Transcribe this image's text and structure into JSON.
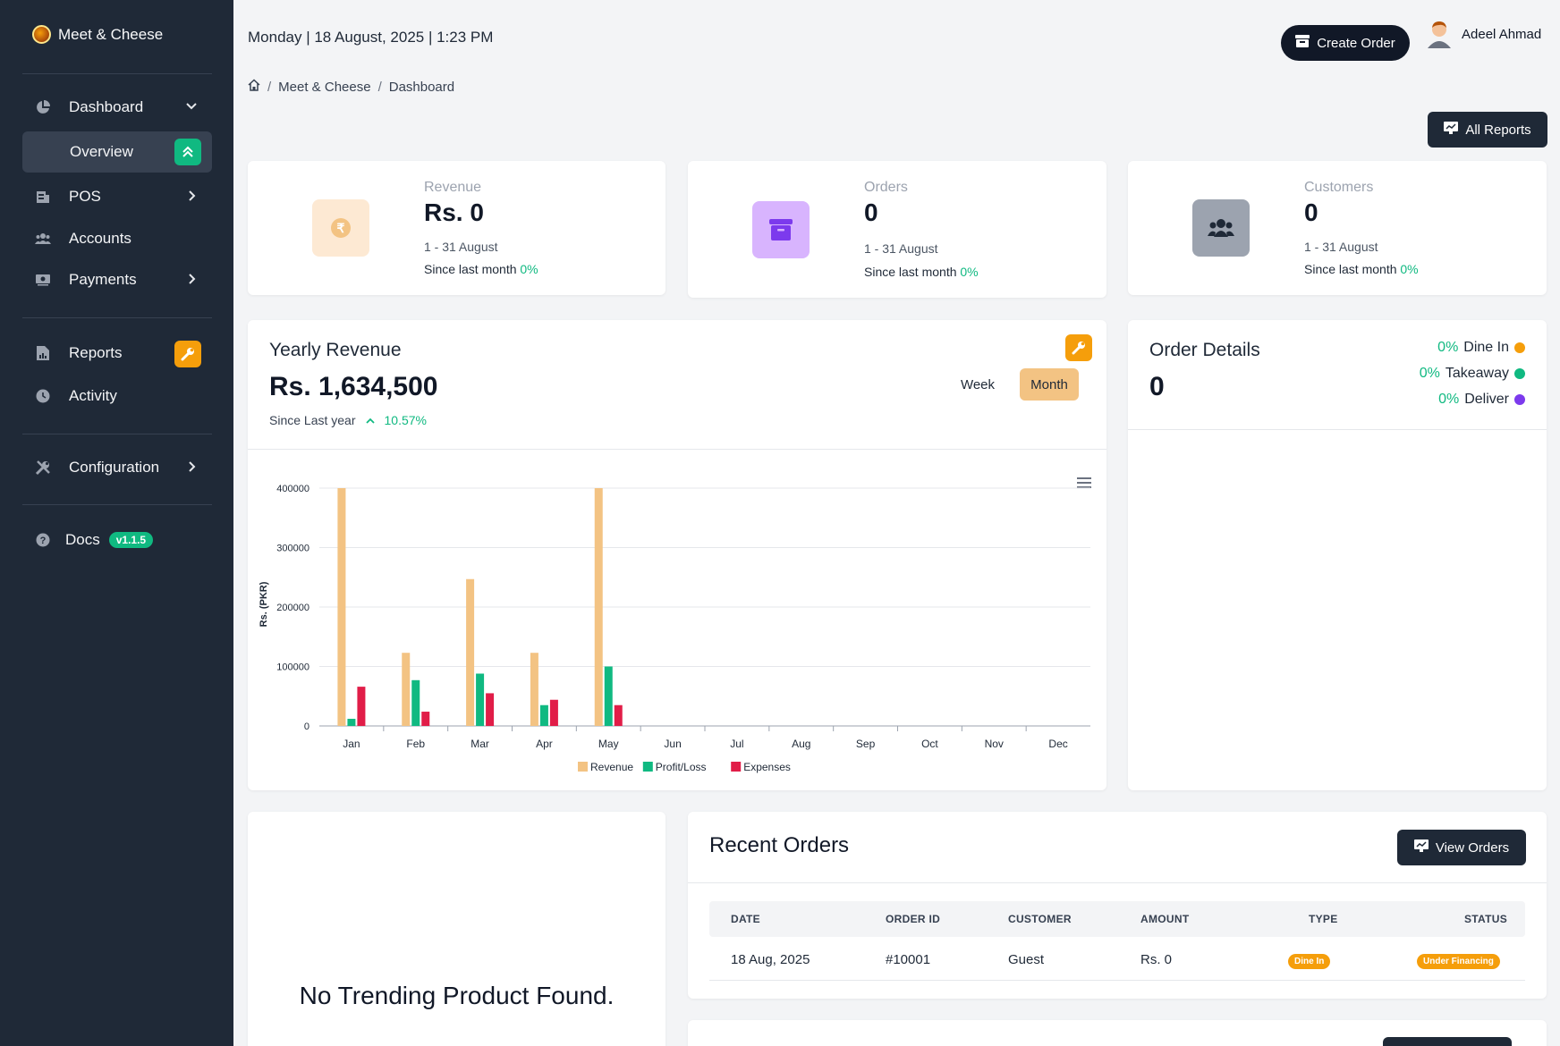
{
  "app": {
    "name": "Meet & Cheese"
  },
  "header": {
    "datetime": "Monday | 18 August, 2025 | 1:23 PM",
    "create_order": "Create Order",
    "user_name": "Adeel Ahmad",
    "all_reports": "All Reports"
  },
  "breadcrumb": {
    "items": [
      "Meet & Cheese",
      "Dashboard"
    ]
  },
  "sidebar": {
    "dashboard": "Dashboard",
    "overview": "Overview",
    "pos": "POS",
    "accounts": "Accounts",
    "payments": "Payments",
    "reports": "Reports",
    "activity": "Activity",
    "configuration": "Configuration",
    "docs": "Docs",
    "docs_version": "v1.1.5"
  },
  "stats": {
    "revenue": {
      "label": "Revenue",
      "value": "Rs. 0",
      "range": "1 - 31 August",
      "since": "Since last month",
      "change": "0%"
    },
    "orders": {
      "label": "Orders",
      "value": "0",
      "range": "1 - 31 August",
      "since": "Since last month",
      "change": "0%"
    },
    "customers": {
      "label": "Customers",
      "value": "0",
      "range": "1 - 31 August",
      "since": "Since last month",
      "change": "0%"
    }
  },
  "yearly": {
    "title": "Yearly Revenue",
    "value": "Rs. 1,634,500",
    "since": "Since Last year",
    "change": "10.57%",
    "week": "Week",
    "month": "Month"
  },
  "chart_data": {
    "type": "bar",
    "title": "",
    "xlabel": "",
    "ylabel": "Rs. (PKR)",
    "ylim": [
      0,
      400000
    ],
    "yticks": [
      "400000",
      "300000",
      "200000",
      "100000",
      "0"
    ],
    "categories": [
      "Jan",
      "Feb",
      "Mar",
      "Apr",
      "May",
      "Jun",
      "Jul",
      "Aug",
      "Sep",
      "Oct",
      "Nov",
      "Dec"
    ],
    "series": [
      {
        "name": "Revenue",
        "color": "#f3c383",
        "values": [
          400000,
          123000,
          247000,
          123000,
          400000,
          0,
          0,
          0,
          0,
          0,
          0,
          0
        ]
      },
      {
        "name": "Profit/Loss",
        "color": "#10b981",
        "values": [
          12000,
          77000,
          88000,
          35000,
          100000,
          0,
          0,
          0,
          0,
          0,
          0,
          0
        ]
      },
      {
        "name": "Expenses",
        "color": "#e11d48",
        "values": [
          66000,
          24000,
          55000,
          44000,
          35000,
          0,
          0,
          0,
          0,
          0,
          0,
          0
        ]
      }
    ]
  },
  "order_details": {
    "title": "Order Details",
    "value": "0",
    "legend": [
      {
        "pct": "0%",
        "label": "Dine In",
        "color": "#f59e0b"
      },
      {
        "pct": "0%",
        "label": "Takeaway",
        "color": "#10b981"
      },
      {
        "pct": "0%",
        "label": "Deliver",
        "color": "#7c3aed"
      }
    ]
  },
  "trending": {
    "empty": "No Trending Product Found."
  },
  "recent_orders": {
    "title": "Recent Orders",
    "view_orders": "View Orders",
    "columns": [
      "DATE",
      "ORDER ID",
      "CUSTOMER",
      "AMOUNT",
      "TYPE",
      "STATUS"
    ],
    "rows": [
      {
        "date": "18 Aug, 2025",
        "order_id": "#10001",
        "customer": "Guest",
        "amount": "Rs. 0",
        "type": "Dine In",
        "status": "Under Financing"
      }
    ]
  }
}
